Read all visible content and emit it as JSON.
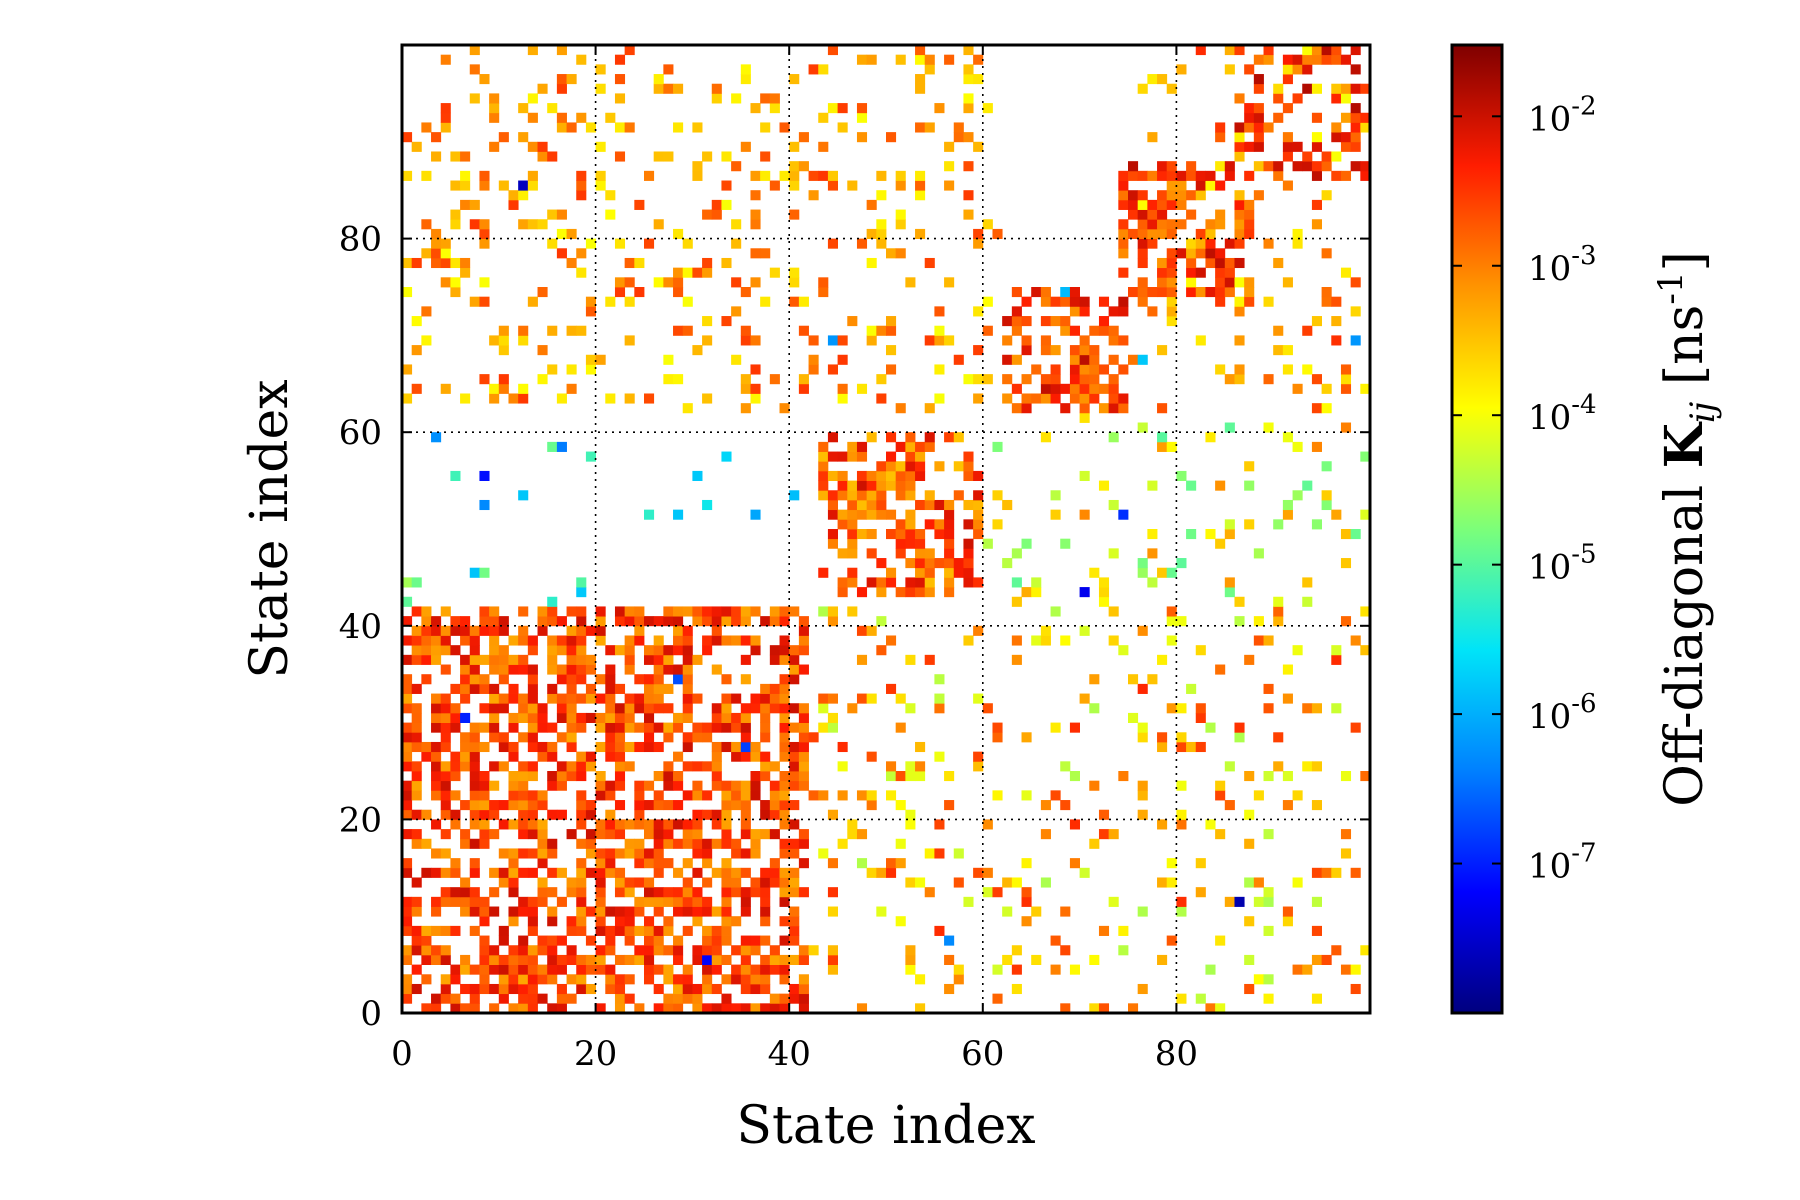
{
  "chart_data": {
    "type": "heatmap",
    "title": "",
    "xlabel": "State index",
    "ylabel": "State index",
    "xlim": [
      0,
      100
    ],
    "ylim": [
      0,
      100
    ],
    "grid": true,
    "x_ticks": [
      0,
      20,
      40,
      60,
      80
    ],
    "y_ticks": [
      0,
      20,
      40,
      60,
      80
    ],
    "matrix_size": 100,
    "colorbar": {
      "label": "Off-diagonal K_ij [ns^-1]",
      "scale": "log",
      "range": [
        1e-08,
        0.03
      ],
      "ticks": [
        {
          "value": 1e-07,
          "base": "10",
          "exp": "-7"
        },
        {
          "value": 1e-06,
          "base": "10",
          "exp": "-6"
        },
        {
          "value": 1e-05,
          "base": "10",
          "exp": "-5"
        },
        {
          "value": 0.0001,
          "base": "10",
          "exp": "-4"
        },
        {
          "value": 0.001,
          "base": "10",
          "exp": "-3"
        },
        {
          "value": 0.01,
          "base": "10",
          "exp": "-2"
        }
      ],
      "colormap": [
        "#00007f",
        "#0000ff",
        "#0080ff",
        "#00e4f8",
        "#7cff79",
        "#ffff00",
        "#ff9400",
        "#ff1d00",
        "#7f0000"
      ]
    },
    "blocks": [
      {
        "rows": [
          0,
          42
        ],
        "cols": [
          0,
          42
        ],
        "density": 0.62,
        "logk": [
          -3.3,
          -2.0
        ]
      },
      {
        "rows": [
          43,
          60
        ],
        "cols": [
          43,
          60
        ],
        "density": 0.58,
        "logk": [
          -3.5,
          -2.0
        ]
      },
      {
        "rows": [
          62,
          75
        ],
        "cols": [
          62,
          75
        ],
        "density": 0.55,
        "logk": [
          -3.2,
          -1.9
        ]
      },
      {
        "rows": [
          74,
          88
        ],
        "cols": [
          74,
          88
        ],
        "density": 0.55,
        "logk": [
          -3.2,
          -1.9
        ]
      },
      {
        "rows": [
          86,
          100
        ],
        "cols": [
          86,
          100
        ],
        "density": 0.45,
        "logk": [
          -3.0,
          -1.8
        ]
      },
      {
        "rows": [
          0,
          42
        ],
        "cols": [
          42,
          100
        ],
        "density": 0.12,
        "logk": [
          -4.5,
          -2.4
        ]
      },
      {
        "rows": [
          42,
          62
        ],
        "cols": [
          0,
          42
        ],
        "density": 0.015,
        "logk": [
          -6.5,
          -4.5
        ]
      },
      {
        "rows": [
          42,
          62
        ],
        "cols": [
          60,
          100
        ],
        "density": 0.1,
        "logk": [
          -5.0,
          -3.0
        ]
      },
      {
        "rows": [
          62,
          100
        ],
        "cols": [
          0,
          62
        ],
        "density": 0.15,
        "logk": [
          -4.0,
          -2.5
        ]
      },
      {
        "rows": [
          62,
          100
        ],
        "cols": [
          75,
          100
        ],
        "density": 0.14,
        "logk": [
          -4.0,
          -2.4
        ]
      }
    ],
    "highlighted_cells": [
      {
        "row": 85,
        "col": 12,
        "logk": -7.6
      },
      {
        "row": 55,
        "col": 8,
        "logk": -7.1
      },
      {
        "row": 52,
        "col": 8,
        "logk": -6.3
      },
      {
        "row": 30,
        "col": 6,
        "logk": -7.0
      },
      {
        "row": 34,
        "col": 28,
        "logk": -6.7
      },
      {
        "row": 27,
        "col": 35,
        "logk": -6.8
      },
      {
        "row": 5,
        "col": 31,
        "logk": -7.2
      },
      {
        "row": 69,
        "col": 44,
        "logk": -6.2
      },
      {
        "row": 51,
        "col": 74,
        "logk": -6.9
      },
      {
        "row": 43,
        "col": 70,
        "logk": -7.3
      },
      {
        "row": 11,
        "col": 86,
        "logk": -7.7
      },
      {
        "row": 7,
        "col": 56,
        "logk": -6.3
      },
      {
        "row": 69,
        "col": 98,
        "logk": -6.2
      },
      {
        "row": 67,
        "col": 76,
        "logk": -5.8
      },
      {
        "row": 74,
        "col": 68,
        "logk": -5.9
      }
    ]
  }
}
